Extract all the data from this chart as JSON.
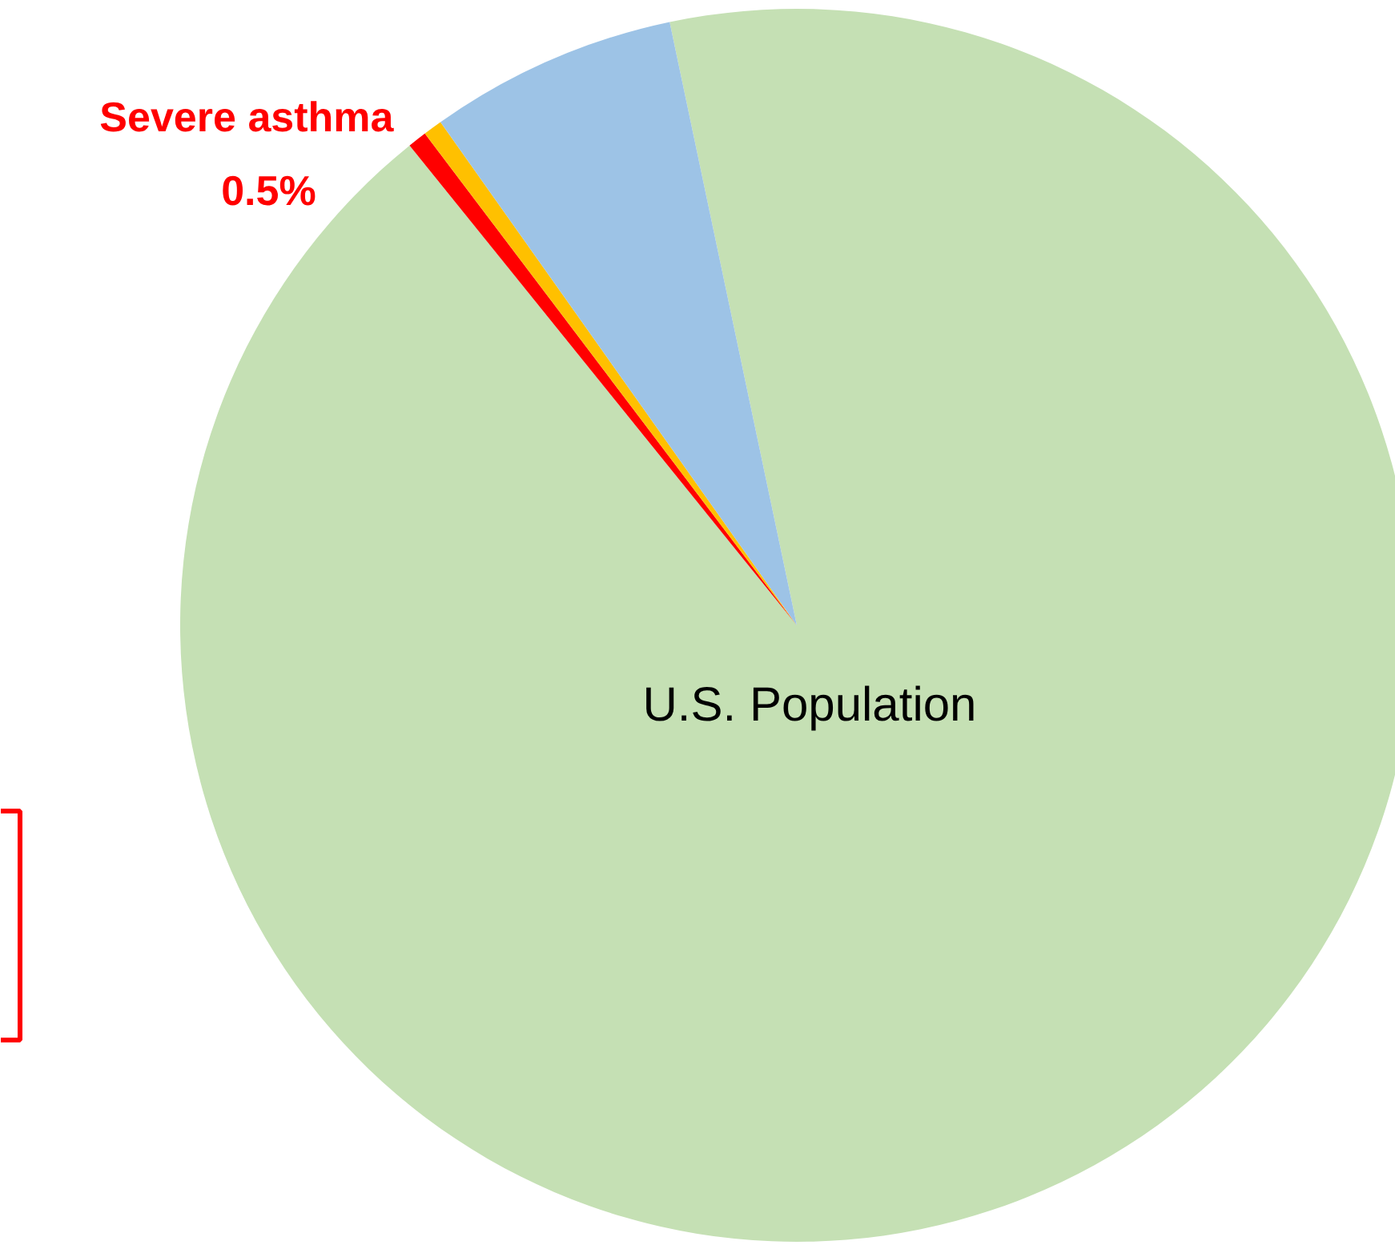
{
  "chart_data": {
    "type": "pie",
    "categories": [
      "U.S. Population",
      "Severe asthma",
      null,
      null
    ],
    "values": [
      92.5,
      0.5,
      0.5,
      6.5
    ],
    "colors": [
      "#c5e0b4",
      "#ff0000",
      "#ffc000",
      "#9dc3e6"
    ],
    "value_labels": [
      null,
      "0.5%",
      null,
      null
    ]
  }
}
